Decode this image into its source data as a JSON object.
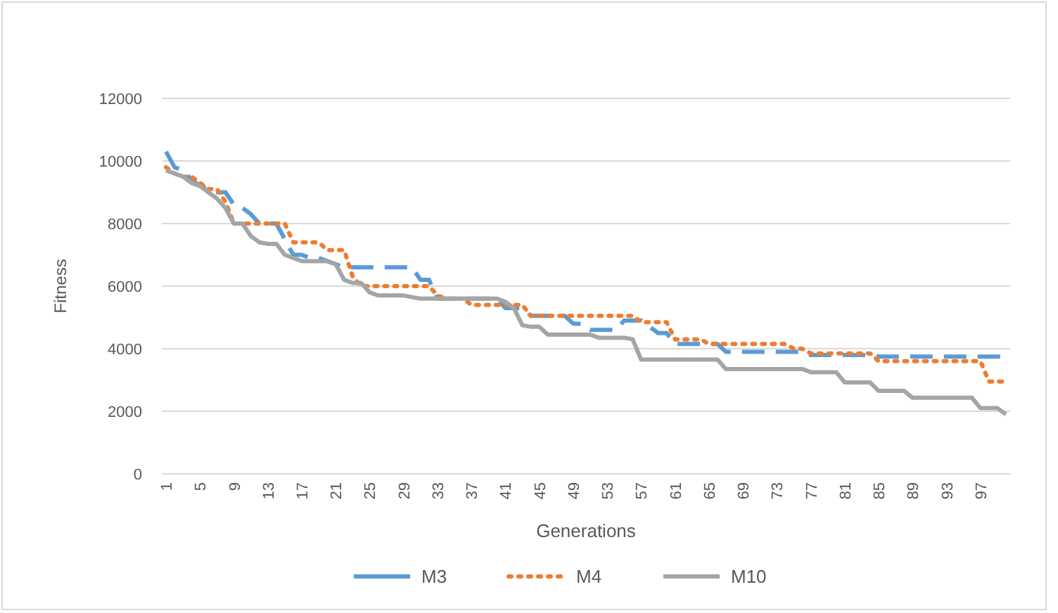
{
  "chart_data": {
    "type": "line",
    "xlabel": "Generations",
    "ylabel": "Fitness",
    "categories": [
      "1",
      null,
      null,
      null,
      "5",
      null,
      null,
      null,
      "9",
      null,
      null,
      null,
      "13",
      null,
      null,
      null,
      "17",
      null,
      null,
      null,
      "21",
      null,
      null,
      null,
      "25",
      null,
      null,
      null,
      "29",
      null,
      null,
      null,
      "33",
      null,
      null,
      null,
      "37",
      null,
      null,
      null,
      "41",
      null,
      null,
      null,
      "45",
      null,
      null,
      null,
      "49",
      null,
      null,
      null,
      "53",
      null,
      null,
      null,
      "57",
      null,
      null,
      null,
      "61",
      null,
      null,
      null,
      "65",
      null,
      null,
      null,
      "69",
      null,
      null,
      null,
      "73",
      null,
      null,
      null,
      "77",
      null,
      null,
      null,
      "81",
      null,
      null,
      null,
      "85",
      null,
      null,
      null,
      "89",
      null,
      null,
      null,
      "93",
      null,
      null,
      null,
      "97",
      null,
      null,
      null
    ],
    "ylim": [
      0,
      12000
    ],
    "yticks": [
      0,
      2000,
      4000,
      6000,
      8000,
      10000,
      12000
    ],
    "grid": "y",
    "legend": "bottom",
    "marker": "none",
    "series": [
      {
        "name": "M3",
        "color": "#5b9bd5",
        "line_style": "dashed",
        "values": [
          10300,
          9800,
          9700,
          9400,
          9200,
          9100,
          9000,
          9000,
          8600,
          8500,
          8300,
          8000,
          8000,
          8000,
          7500,
          7000,
          7000,
          6900,
          6900,
          6800,
          6700,
          6600,
          6600,
          6600,
          6600,
          6600,
          6600,
          6600,
          6600,
          6600,
          6200,
          6200,
          5600,
          5600,
          5600,
          5600,
          5600,
          5600,
          5600,
          5600,
          5300,
          5300,
          5300,
          5050,
          5050,
          5050,
          5050,
          5050,
          4800,
          4800,
          4600,
          4600,
          4600,
          4600,
          4900,
          4900,
          4900,
          4700,
          4500,
          4500,
          4150,
          4150,
          4150,
          4150,
          4150,
          4150,
          3900,
          3900,
          3900,
          3900,
          3900,
          3900,
          3900,
          3900,
          3900,
          3900,
          3800,
          3800,
          3800,
          3800,
          3800,
          3800,
          3800,
          3800,
          3750,
          3750,
          3750,
          3750,
          3750,
          3750,
          3750,
          3750,
          3750,
          3750,
          3750,
          3750,
          3750,
          3750,
          3750,
          3750
        ]
      },
      {
        "name": "M4",
        "color": "#ed7d31",
        "line_style": "dotted",
        "values": [
          9800,
          9600,
          9500,
          9500,
          9300,
          9100,
          9100,
          8700,
          8000,
          8000,
          8000,
          8000,
          8000,
          8000,
          8000,
          7400,
          7400,
          7400,
          7400,
          7150,
          7150,
          7150,
          6300,
          6000,
          6000,
          6000,
          6000,
          6000,
          6000,
          6000,
          6000,
          6000,
          5700,
          5600,
          5600,
          5600,
          5400,
          5400,
          5400,
          5400,
          5400,
          5400,
          5400,
          5050,
          5050,
          5050,
          5050,
          5050,
          5050,
          5050,
          5050,
          5050,
          5050,
          5050,
          5050,
          5050,
          4850,
          4850,
          4850,
          4850,
          4300,
          4300,
          4300,
          4300,
          4150,
          4150,
          4150,
          4150,
          4150,
          4150,
          4150,
          4150,
          4150,
          4150,
          4000,
          4000,
          3850,
          3850,
          3850,
          3850,
          3850,
          3850,
          3850,
          3850,
          3600,
          3600,
          3600,
          3600,
          3600,
          3600,
          3600,
          3600,
          3600,
          3600,
          3600,
          3600,
          3600,
          2950,
          2950,
          2950
        ]
      },
      {
        "name": "M10",
        "color": "#a5a5a5",
        "line_style": "solid",
        "values": [
          9700,
          9600,
          9500,
          9300,
          9200,
          9000,
          8800,
          8500,
          8000,
          8000,
          7600,
          7400,
          7350,
          7350,
          7000,
          6900,
          6800,
          6800,
          6800,
          6800,
          6700,
          6200,
          6100,
          6100,
          5800,
          5700,
          5700,
          5700,
          5700,
          5650,
          5600,
          5600,
          5600,
          5600,
          5600,
          5600,
          5600,
          5600,
          5600,
          5600,
          5500,
          5300,
          4750,
          4700,
          4700,
          4450,
          4450,
          4450,
          4450,
          4450,
          4450,
          4350,
          4350,
          4350,
          4350,
          4300,
          3650,
          3650,
          3650,
          3650,
          3650,
          3650,
          3650,
          3650,
          3650,
          3650,
          3350,
          3350,
          3350,
          3350,
          3350,
          3350,
          3350,
          3350,
          3350,
          3350,
          3250,
          3250,
          3250,
          3250,
          2920,
          2920,
          2920,
          2920,
          2650,
          2650,
          2650,
          2650,
          2430,
          2430,
          2430,
          2430,
          2430,
          2430,
          2430,
          2430,
          2100,
          2100,
          2100,
          1900
        ]
      }
    ]
  }
}
